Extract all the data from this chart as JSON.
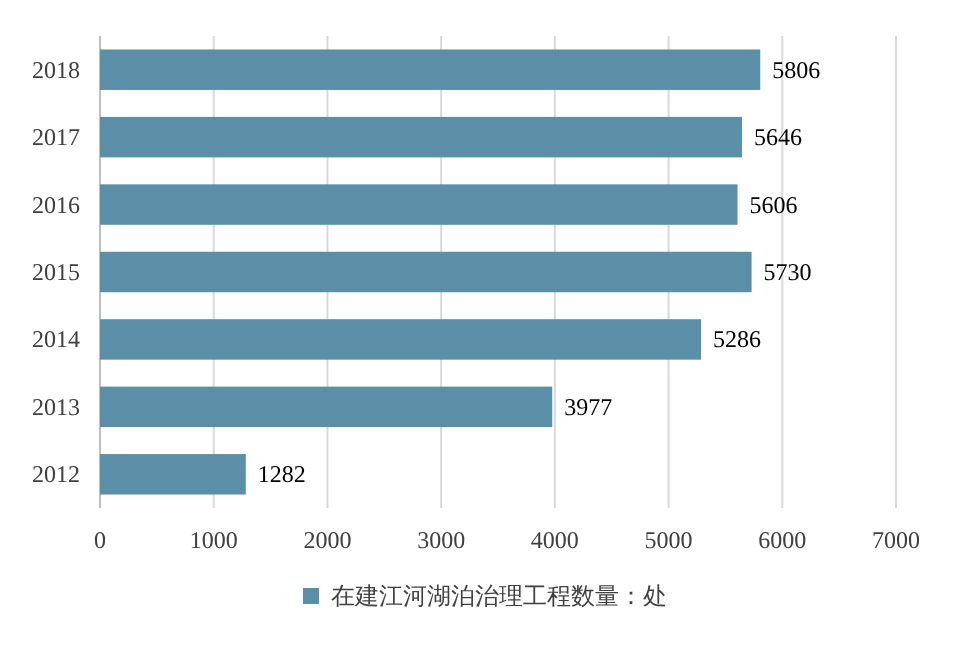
{
  "chart_data": {
    "type": "bar",
    "orientation": "horizontal",
    "categories": [
      "2018",
      "2017",
      "2016",
      "2015",
      "2014",
      "2013",
      "2012"
    ],
    "series": [
      {
        "name": "在建江河湖泊治理工程数量：处",
        "color": "#5b8fa8",
        "values": [
          5806,
          5646,
          5606,
          5730,
          5286,
          3977,
          1282
        ]
      }
    ],
    "xlim": [
      0,
      7000
    ],
    "xticks": [
      0,
      1000,
      2000,
      3000,
      4000,
      5000,
      6000,
      7000
    ],
    "grid": "x",
    "legend": "bottom",
    "data_labels": true
  }
}
